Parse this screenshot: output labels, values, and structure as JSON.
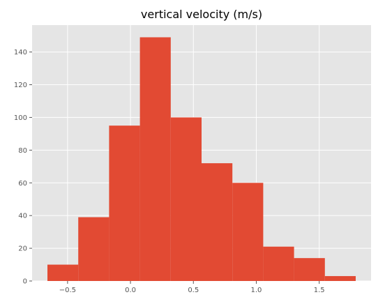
{
  "chart_data": {
    "type": "histogram",
    "title": "vertical velocity (m/s)",
    "xlabel": "",
    "ylabel": "",
    "bin_edges": [
      -0.66,
      -0.415,
      -0.17,
      0.075,
      0.32,
      0.565,
      0.81,
      1.055,
      1.3,
      1.545,
      1.79
    ],
    "counts": [
      10,
      39,
      95,
      149,
      100,
      72,
      60,
      21,
      14,
      3
    ],
    "xlim": [
      -0.782,
      1.912
    ],
    "ylim": [
      0,
      156.45
    ],
    "x_ticks": [
      -0.5,
      0.0,
      0.5,
      1.0,
      1.5
    ],
    "x_tick_labels": [
      "−0.5",
      "0.0",
      "0.5",
      "1.0",
      "1.5"
    ],
    "y_ticks": [
      0,
      20,
      40,
      60,
      80,
      100,
      120,
      140
    ],
    "y_tick_labels": [
      "0",
      "20",
      "40",
      "60",
      "80",
      "100",
      "120",
      "140"
    ],
    "grid": true,
    "colors": {
      "bar": "#e24a33",
      "plot_background": "#e5e5e5",
      "grid": "#ffffff",
      "tick_label": "#555555"
    }
  }
}
